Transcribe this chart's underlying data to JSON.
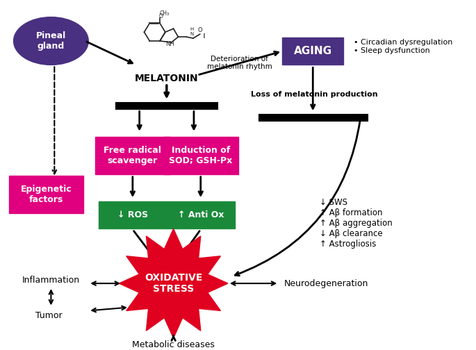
{
  "bg_color": "#ffffff",
  "pineal_color": "#4a3080",
  "aging_color": "#4a3080",
  "magenta_color": "#e0007f",
  "green_color": "#1a8a3a",
  "red_color": "#e0001f",
  "text_color": "#000000",
  "white_text": "#ffffff",
  "pineal_label": "Pineal\ngland",
  "melatonin_label": "MELATONIN",
  "aging_label": "AGING",
  "deterioration_text": "Deterioration of\nmelatonin rhythm",
  "aging_bullets": "• Circadian dysregulation\n• Sleep dysfunction",
  "loss_text": "Loss of melatonin production",
  "epigenetic_label": "Epigenetic\nfactors",
  "free_radical_label": "Free radical\nscavenger",
  "induction_label": "Induction of\nSOD; GSH-Px",
  "ros_label": "↓ ROS",
  "anti_ox_label": "↑ Anti Ox",
  "oxidative_stress_label": "OXIDATIVE\nSTRESS",
  "inflammation_label": "Inflammation",
  "tumor_label": "Tumor",
  "neuro_label": "Neurodegeneration",
  "metabolic_label": "Metabolic diseases",
  "sws_text": "↓ SWS\n↑ Aβ formation\n↑ Aβ aggregation\n↓ Aβ clearance\n↑ Astrogliosis"
}
